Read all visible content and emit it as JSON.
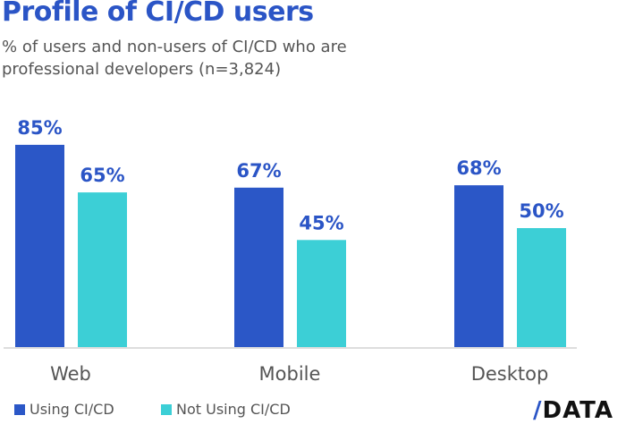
{
  "chart_data": {
    "type": "bar",
    "title": "Profile of CI/CD users",
    "subtitle": "% of users and non-users of CI/CD who are professional developers (n=3,824)",
    "categories": [
      "Web",
      "Mobile",
      "Desktop"
    ],
    "series": [
      {
        "name": "Using CI/CD",
        "values": [
          85,
          67,
          68
        ],
        "color": "#2b57c7"
      },
      {
        "name": "Not Using CI/CD",
        "values": [
          65,
          45,
          50
        ],
        "color": "#3ccfd6"
      }
    ],
    "ylim": [
      0,
      100
    ],
    "grid": false,
    "legend": "bottom-left",
    "value_suffix": "%"
  },
  "logo": {
    "text": "DATA",
    "mark": "/"
  }
}
